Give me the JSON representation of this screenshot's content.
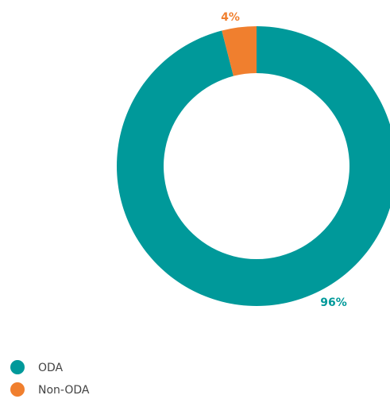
{
  "chart_data": {
    "type": "pie",
    "categories": [
      "ODA",
      "Non-ODA"
    ],
    "values": [
      96,
      4
    ],
    "value_labels": [
      "96%",
      "4%"
    ],
    "colors": [
      "#00999a",
      "#f07f2e"
    ],
    "donut": true,
    "legend": "bottom-left"
  }
}
